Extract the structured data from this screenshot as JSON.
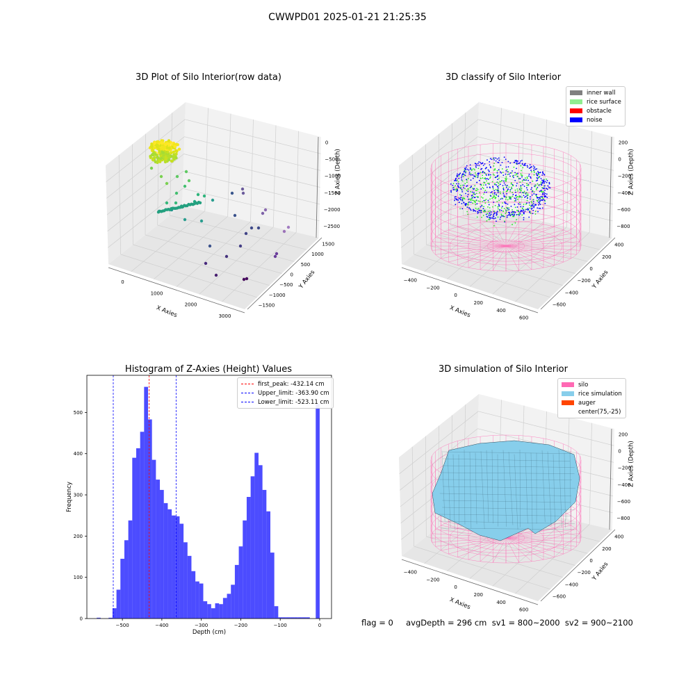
{
  "suptitle": "CWWPD01 2025-01-21 21:25:35",
  "chart_data": [
    {
      "type": "scatter",
      "title": "3D Plot of Silo Interior(row data)",
      "xlabel": "X Axies",
      "ylabel": "Y Axies",
      "zlabel": "Z Axies (Depth)",
      "x_ticks": [
        "0",
        "1000",
        "2000",
        "3000"
      ],
      "y_ticks": [
        "1500",
        "1000",
        "500",
        "0",
        "−500",
        "−1000",
        "−1500"
      ],
      "z_ticks": [
        "0",
        "−500",
        "−1000",
        "−1500",
        "−2000",
        "−2500"
      ],
      "colormap": "viridis",
      "description_points": [
        {
          "x": 100,
          "y": 1500,
          "z": 0
        },
        {
          "x": 500,
          "y": 600,
          "z": -1000
        },
        {
          "x": 1200,
          "y": 300,
          "z": -1500
        },
        {
          "x": 2000,
          "y": -300,
          "z": -2000
        },
        {
          "x": 3000,
          "y": -1000,
          "z": -2500
        }
      ]
    },
    {
      "type": "scatter",
      "title": "3D classify of Silo Interior",
      "xlabel": "X Axies",
      "ylabel": "Y Axies",
      "zlabel": "Z Axies (Depth)",
      "x_ticks": [
        "−400",
        "−200",
        "0",
        "200",
        "400",
        "600"
      ],
      "y_ticks": [
        "400",
        "200",
        "0",
        "−200",
        "−400",
        "−600"
      ],
      "z_ticks": [
        "200",
        "0",
        "−200",
        "−400",
        "−600",
        "−800"
      ],
      "legend": [
        {
          "label": "inner wall",
          "color": "#808080"
        },
        {
          "label": "rice surface",
          "color": "#90ee90"
        },
        {
          "label": "obstacle",
          "color": "#ff0000"
        },
        {
          "label": "noise",
          "color": "#0000ff"
        }
      ]
    },
    {
      "type": "bar",
      "title": "Histogram of Z-Axies (Height) Values",
      "xlabel": "Depth (cm)",
      "ylabel": "Frequency",
      "xlim": [
        -590,
        30
      ],
      "ylim": [
        0,
        590
      ],
      "x_ticks": [
        -500,
        -400,
        -300,
        -200,
        -100,
        0
      ],
      "y_ticks": [
        0,
        100,
        200,
        300,
        400,
        500
      ],
      "bar_color": "#0000ff",
      "bin_width": 10,
      "bin_starts": [
        -565,
        -535,
        -525,
        -515,
        -505,
        -495,
        -485,
        -475,
        -465,
        -455,
        -445,
        -435,
        -425,
        -415,
        -405,
        -395,
        -385,
        -375,
        -365,
        -355,
        -345,
        -335,
        -325,
        -315,
        -305,
        -295,
        -285,
        -275,
        -265,
        -255,
        -245,
        -235,
        -225,
        -215,
        -205,
        -195,
        -185,
        -175,
        -165,
        -155,
        -145,
        -135,
        -125,
        -115,
        -105,
        -95,
        -85,
        -75,
        -65,
        -55,
        -45,
        -35,
        -10
      ],
      "counts": [
        2,
        2,
        25,
        70,
        145,
        190,
        238,
        390,
        413,
        453,
        562,
        483,
        385,
        337,
        312,
        280,
        265,
        250,
        248,
        230,
        185,
        152,
        115,
        90,
        85,
        42,
        35,
        25,
        37,
        35,
        50,
        60,
        82,
        130,
        175,
        238,
        295,
        345,
        402,
        372,
        312,
        260,
        160,
        30,
        3,
        3,
        3,
        3,
        3,
        3,
        3,
        3,
        520
      ],
      "vlines": [
        {
          "label": "first_peak: -432.14 cm",
          "x": -432.14,
          "color": "#ff0000"
        },
        {
          "label": "Upper_limit: -363.90 cm",
          "x": -363.9,
          "color": "#0000ff"
        },
        {
          "label": "Lower_limit: -523.11 cm",
          "x": -523.11,
          "color": "#0000ff"
        }
      ]
    },
    {
      "type": "area",
      "title": "3D simulation of Silo Interior",
      "xlabel": "X Axies",
      "ylabel": "Y Axies",
      "zlabel": "Z Axies (Depth)",
      "x_ticks": [
        "−400",
        "−200",
        "0",
        "200",
        "400",
        "600"
      ],
      "y_ticks": [
        "400",
        "200",
        "0",
        "−200",
        "−400",
        "−600"
      ],
      "z_ticks": [
        "200",
        "0",
        "−200",
        "−400",
        "−600",
        "−800"
      ],
      "legend": [
        {
          "label": "silo",
          "color": "#ff69b4"
        },
        {
          "label": "rice simulation",
          "color": "#87ceeb"
        },
        {
          "label": "auger",
          "color": "#ff4500"
        },
        {
          "label": "center(75,-25)",
          "color": ""
        }
      ]
    }
  ],
  "stats_text": "flag = 0     avgDepth = 296 cm  sv1 = 800~2000  sv2 = 900~2100"
}
